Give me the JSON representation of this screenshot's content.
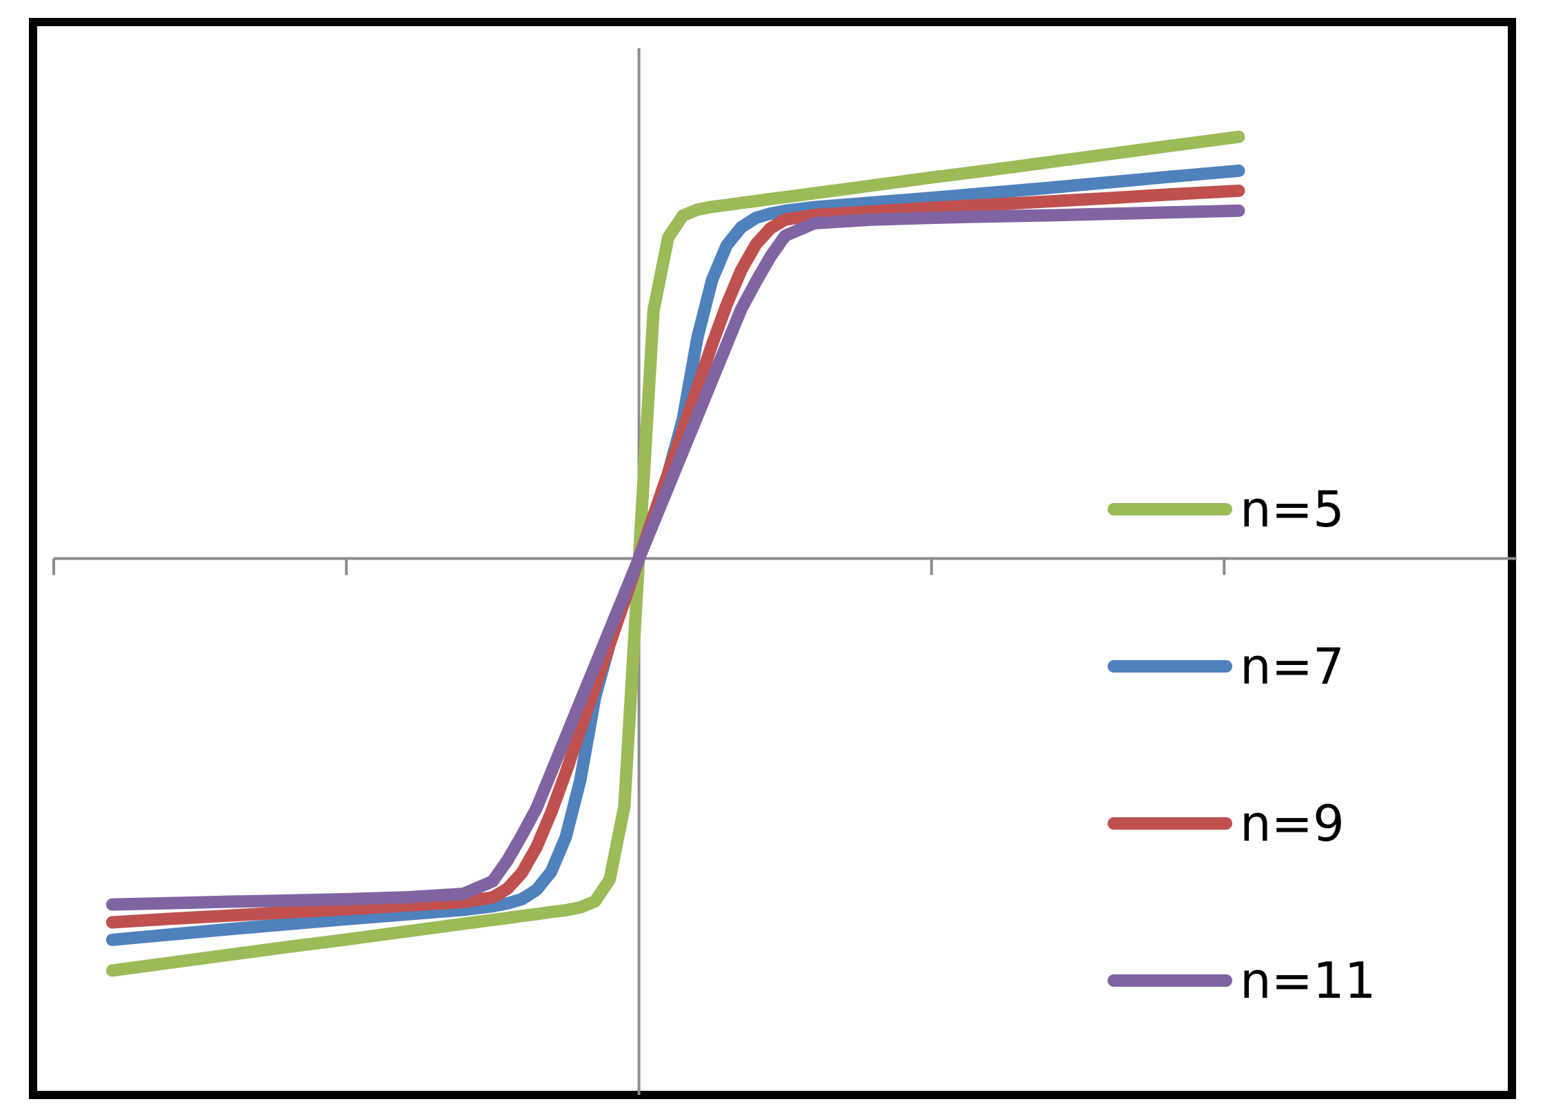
{
  "chart_data": {
    "type": "line",
    "title": "",
    "xlabel": "",
    "ylabel": "",
    "xlim": [
      -2,
      3
    ],
    "ylim": [
      -1.5,
      1.5
    ],
    "x_ticks": [
      -2,
      -1,
      0,
      1,
      2
    ],
    "x_tick_labels": [],
    "y_tick_labels": [],
    "grid": false,
    "legend_position": "right",
    "x": [
      -1.8,
      -1.6,
      -1.4,
      -1.2,
      -1.0,
      -0.8,
      -0.6,
      -0.5,
      -0.45,
      -0.4,
      -0.35,
      -0.3,
      -0.25,
      -0.2,
      -0.15,
      -0.1,
      -0.05,
      0,
      0.05,
      0.1,
      0.15,
      0.2,
      0.25,
      0.3,
      0.35,
      0.4,
      0.45,
      0.5,
      0.6,
      0.8,
      1.0,
      1.2,
      1.4,
      1.6,
      1.8,
      2.05
    ],
    "series": [
      {
        "name": "n=5",
        "color": "#9BBB59",
        "values": [
          -1.155,
          -1.133,
          -1.111,
          -1.089,
          -1.068,
          -1.046,
          -1.024,
          -1.013,
          -1.008,
          -1.002,
          -0.997,
          -0.991,
          -0.986,
          -0.978,
          -0.961,
          -0.9,
          -0.695,
          0,
          0.695,
          0.9,
          0.961,
          0.978,
          0.986,
          0.991,
          0.997,
          1.002,
          1.008,
          1.013,
          1.024,
          1.046,
          1.068,
          1.089,
          1.111,
          1.133,
          1.155,
          1.182
        ]
      },
      {
        "name": "n=7",
        "color": "#4F81BD",
        "values": [
          -1.069,
          -1.054,
          -1.039,
          -1.025,
          -1.011,
          -0.998,
          -0.985,
          -0.975,
          -0.967,
          -0.955,
          -0.929,
          -0.878,
          -0.781,
          -0.62,
          -0.39,
          -0.24,
          -0.12,
          0,
          0.12,
          0.24,
          0.39,
          0.62,
          0.781,
          0.878,
          0.929,
          0.955,
          0.967,
          0.975,
          0.985,
          0.998,
          1.011,
          1.025,
          1.039,
          1.054,
          1.069,
          1.087
        ]
      },
      {
        "name": "n=9",
        "color": "#C0504D",
        "values": [
          -1.02,
          -1.01,
          -1.001,
          -0.992,
          -0.983,
          -0.973,
          -0.963,
          -0.95,
          -0.926,
          -0.881,
          -0.809,
          -0.712,
          -0.6,
          -0.48,
          -0.36,
          -0.24,
          -0.12,
          0,
          0.12,
          0.24,
          0.36,
          0.48,
          0.6,
          0.712,
          0.809,
          0.881,
          0.926,
          0.95,
          0.963,
          0.973,
          0.983,
          0.992,
          1.001,
          1.01,
          1.02,
          1.031
        ]
      },
      {
        "name": "n=11",
        "color": "#8064A2",
        "values": [
          -0.97,
          -0.966,
          -0.962,
          -0.959,
          -0.955,
          -0.95,
          -0.94,
          -0.905,
          -0.847,
          -0.776,
          -0.7,
          -0.6,
          -0.5,
          -0.4,
          -0.3,
          -0.2,
          -0.1,
          0,
          0.1,
          0.2,
          0.3,
          0.4,
          0.5,
          0.6,
          0.7,
          0.776,
          0.847,
          0.905,
          0.94,
          0.95,
          0.955,
          0.959,
          0.962,
          0.966,
          0.97,
          0.975
        ]
      }
    ]
  }
}
